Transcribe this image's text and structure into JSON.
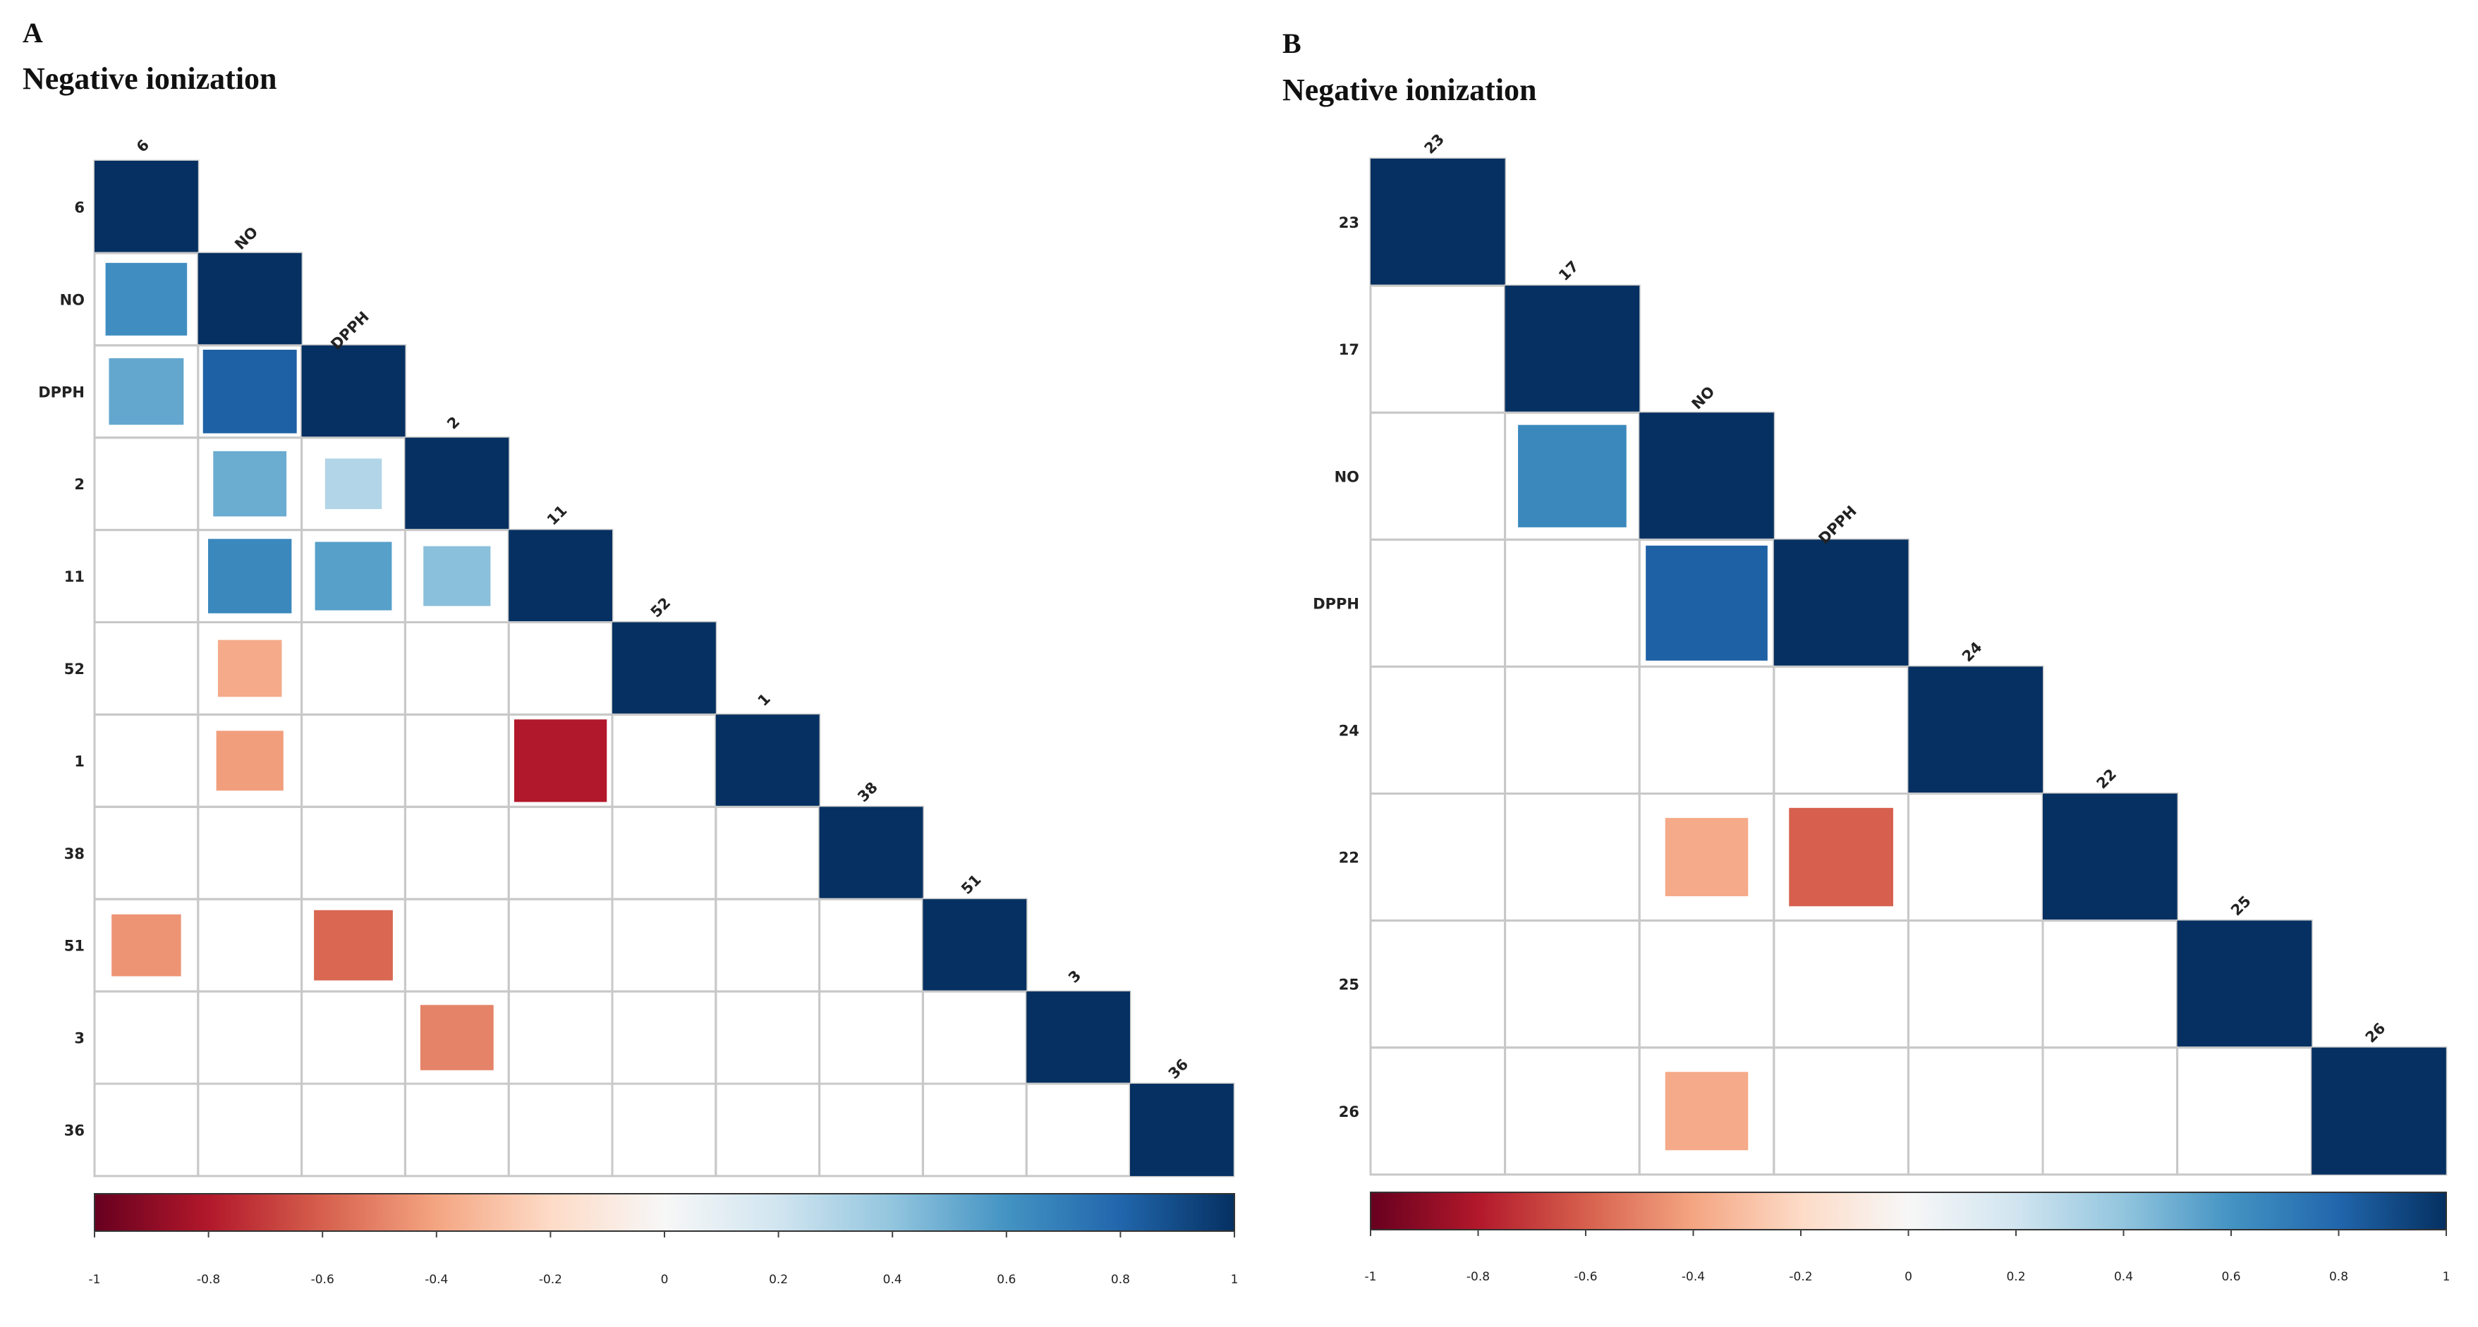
{
  "chart_data": [
    {
      "type": "heatmap",
      "panel_label": "A",
      "title": "Negative ionization",
      "variables": [
        "6",
        "NO",
        "DPPH",
        "2",
        "11",
        "52",
        "1",
        "38",
        "51",
        "3",
        "36"
      ],
      "shape": "lower-triangle",
      "value_range": [
        -1,
        1
      ],
      "diagonal": 1,
      "correlations": [
        {
          "row": "NO",
          "col": "6",
          "value": 0.62
        },
        {
          "row": "DPPH",
          "col": "6",
          "value": 0.52
        },
        {
          "row": "DPPH",
          "col": "NO",
          "value": 0.82
        },
        {
          "row": "2",
          "col": "NO",
          "value": 0.5
        },
        {
          "row": "2",
          "col": "DPPH",
          "value": 0.3
        },
        {
          "row": "11",
          "col": "NO",
          "value": 0.65
        },
        {
          "row": "11",
          "col": "DPPH",
          "value": 0.55
        },
        {
          "row": "11",
          "col": "2",
          "value": 0.42
        },
        {
          "row": "52",
          "col": "NO",
          "value": -0.38
        },
        {
          "row": "1",
          "col": "NO",
          "value": -0.42
        },
        {
          "row": "1",
          "col": "11",
          "value": -0.8
        },
        {
          "row": "51",
          "col": "6",
          "value": -0.45
        },
        {
          "row": "51",
          "col": "DPPH",
          "value": -0.58
        },
        {
          "row": "3",
          "col": "2",
          "value": -0.5
        }
      ],
      "colorbar": {
        "ticks": [
          "-1",
          "-0.8",
          "-0.6",
          "-0.4",
          "-0.2",
          "0",
          "0.2",
          "0.4",
          "0.6",
          "0.8",
          "1"
        ]
      }
    },
    {
      "type": "heatmap",
      "panel_label": "B",
      "title": "Negative ionization",
      "variables": [
        "23",
        "17",
        "NO",
        "DPPH",
        "24",
        "22",
        "25",
        "26"
      ],
      "shape": "lower-triangle",
      "value_range": [
        -1,
        1
      ],
      "diagonal": 1,
      "correlations": [
        {
          "row": "NO",
          "col": "17",
          "value": 0.65
        },
        {
          "row": "DPPH",
          "col": "NO",
          "value": 0.82
        },
        {
          "row": "22",
          "col": "NO",
          "value": -0.38
        },
        {
          "row": "22",
          "col": "DPPH",
          "value": -0.6
        },
        {
          "row": "26",
          "col": "NO",
          "value": -0.38
        }
      ],
      "colorbar": {
        "ticks": [
          "-1",
          "-0.8",
          "-0.6",
          "-0.4",
          "-0.2",
          "0",
          "0.2",
          "0.4",
          "0.6",
          "0.8",
          "1"
        ]
      }
    }
  ],
  "colors": {
    "stops": [
      "#67001f",
      "#b2182b",
      "#d6604d",
      "#f4a582",
      "#fddbc7",
      "#f7f7f7",
      "#d1e5f0",
      "#92c5de",
      "#4393c3",
      "#2166ac",
      "#053061"
    ],
    "grid": "#c8c8c8"
  }
}
